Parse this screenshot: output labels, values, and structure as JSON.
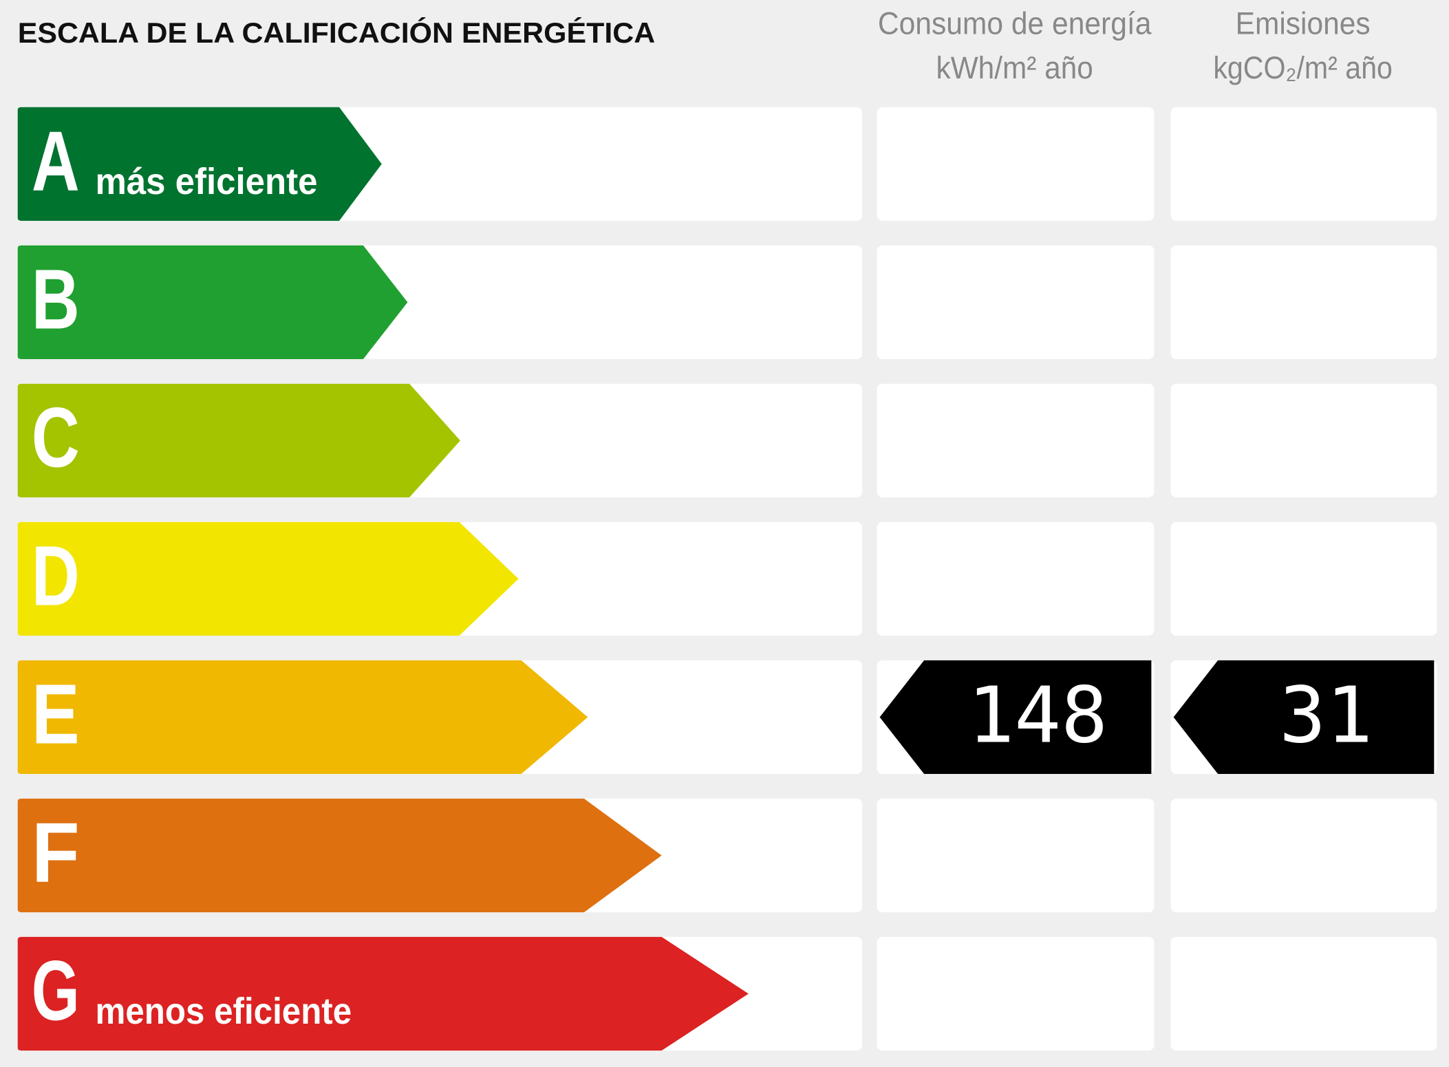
{
  "title": "ESCALA DE LA CALIFICACIÓN ENERGÉTICA",
  "columns": [
    {
      "title": "Consumo de energía",
      "unit": "kWh/m² año"
    },
    {
      "title": "Emisiones",
      "unit": "kgCO₂/m² año"
    }
  ],
  "ratings": [
    {
      "letter": "A",
      "label": "más eficiente",
      "color": "#00732f"
    },
    {
      "letter": "B",
      "color": "#20a030"
    },
    {
      "letter": "C",
      "color": "#a4c400"
    },
    {
      "letter": "D",
      "color": "#f2e500"
    },
    {
      "letter": "E",
      "color": "#f0b800"
    },
    {
      "letter": "F",
      "color": "#de7010"
    },
    {
      "letter": "G",
      "label": "menos eficiente",
      "color": "#dc2222"
    }
  ],
  "current": {
    "rating": "E",
    "values": [
      148,
      31
    ]
  }
}
